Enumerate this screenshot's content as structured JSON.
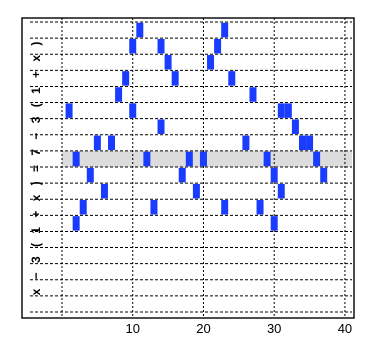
{
  "chart_data": {
    "type": "other",
    "title": "",
    "equation_display": "x − 3 ( 1 + x ) = 7 − 3 ( 1 + x )",
    "x_ticks": [
      10,
      20,
      30,
      40
    ],
    "xlim": [
      0,
      41
    ],
    "rows": 18,
    "highlight_row": 8,
    "grid": true,
    "colors": {
      "bar": "#1a3cff",
      "highlight": "#dcdcdc",
      "grid": "#000000"
    },
    "bars": [
      {
        "x": 11,
        "row": 0
      },
      {
        "x": 10,
        "row": 1
      },
      {
        "x": 14,
        "row": 1
      },
      {
        "x": 15,
        "row": 2
      },
      {
        "x": 16,
        "row": 3
      },
      {
        "x": 9,
        "row": 3
      },
      {
        "x": 8,
        "row": 4
      },
      {
        "x": 1,
        "row": 5
      },
      {
        "x": 10,
        "row": 5
      },
      {
        "x": 14,
        "row": 6
      },
      {
        "x": 5,
        "row": 7
      },
      {
        "x": 7,
        "row": 7
      },
      {
        "x": 2,
        "row": 8
      },
      {
        "x": 12,
        "row": 8
      },
      {
        "x": 18,
        "row": 8
      },
      {
        "x": 20,
        "row": 8
      },
      {
        "x": 4,
        "row": 9
      },
      {
        "x": 19,
        "row": 10
      },
      {
        "x": 6,
        "row": 10
      },
      {
        "x": 3,
        "row": 11
      },
      {
        "x": 2,
        "row": 12
      },
      {
        "x": 30,
        "row": 12
      },
      {
        "x": 23,
        "row": 0
      },
      {
        "x": 22,
        "row": 1
      },
      {
        "x": 21,
        "row": 2
      },
      {
        "x": 24,
        "row": 3
      },
      {
        "x": 27,
        "row": 4
      },
      {
        "x": 31,
        "row": 5
      },
      {
        "x": 32,
        "row": 5
      },
      {
        "x": 33,
        "row": 6
      },
      {
        "x": 26,
        "row": 7
      },
      {
        "x": 34,
        "row": 7
      },
      {
        "x": 35,
        "row": 7
      },
      {
        "x": 29,
        "row": 8
      },
      {
        "x": 36,
        "row": 8
      },
      {
        "x": 30,
        "row": 9
      },
      {
        "x": 37,
        "row": 9
      },
      {
        "x": 23,
        "row": 11
      },
      {
        "x": 28,
        "row": 11
      },
      {
        "x": 31,
        "row": 10
      },
      {
        "x": 17,
        "row": 9
      },
      {
        "x": 13,
        "row": 11
      }
    ]
  }
}
